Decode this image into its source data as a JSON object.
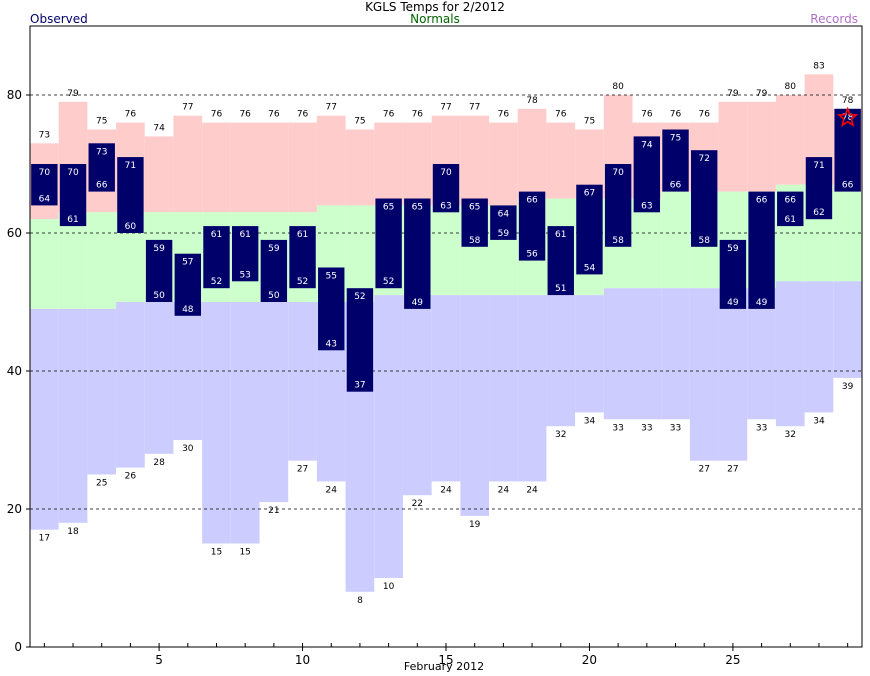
{
  "chart_data": {
    "type": "bar",
    "title": "KGLS Temps for 2/2012",
    "xlabel": "February 2012",
    "ylabel": "",
    "legend": {
      "observed": "Observed",
      "normals": "Normals",
      "records": "Records",
      "placement": "top"
    },
    "xlim": [
      0.5,
      29.5
    ],
    "ylim": [
      0,
      90
    ],
    "x_ticks": [
      5,
      10,
      15,
      20,
      25
    ],
    "y_ticks": [
      0,
      20,
      40,
      60,
      80
    ],
    "dashed_gridlines_y": [
      20,
      40,
      60,
      80
    ],
    "days": [
      1,
      2,
      3,
      4,
      5,
      6,
      7,
      8,
      9,
      10,
      11,
      12,
      13,
      14,
      15,
      16,
      17,
      18,
      19,
      20,
      21,
      22,
      23,
      24,
      25,
      26,
      27,
      28,
      29
    ],
    "record_high": [
      73,
      79,
      75,
      76,
      74,
      77,
      76,
      76,
      76,
      76,
      77,
      75,
      76,
      76,
      77,
      77,
      76,
      78,
      76,
      75,
      80,
      76,
      76,
      76,
      79,
      79,
      80,
      83,
      78
    ],
    "normal_high": [
      62,
      63,
      63,
      63,
      63,
      63,
      63,
      63,
      63,
      63,
      64,
      64,
      64,
      64,
      64,
      64,
      64,
      65,
      65,
      65,
      65,
      65,
      66,
      66,
      66,
      66,
      67,
      67,
      66
    ],
    "normal_low": [
      49,
      49,
      49,
      50,
      50,
      50,
      50,
      50,
      50,
      50,
      50,
      50,
      51,
      51,
      51,
      51,
      51,
      51,
      51,
      51,
      52,
      52,
      52,
      52,
      52,
      52,
      53,
      53,
      53
    ],
    "record_low": [
      17,
      18,
      25,
      26,
      28,
      30,
      15,
      15,
      21,
      27,
      24,
      8,
      10,
      22,
      24,
      19,
      24,
      24,
      32,
      34,
      33,
      33,
      33,
      27,
      27,
      33,
      32,
      34,
      39
    ],
    "observed_high": [
      70,
      70,
      73,
      71,
      59,
      57,
      61,
      61,
      59,
      61,
      55,
      52,
      65,
      65,
      70,
      65,
      64,
      66,
      61,
      67,
      70,
      74,
      75,
      72,
      59,
      66,
      66,
      71,
      78
    ],
    "observed_low": [
      64,
      61,
      66,
      60,
      50,
      48,
      52,
      53,
      50,
      52,
      43,
      37,
      52,
      49,
      63,
      58,
      59,
      56,
      51,
      54,
      58,
      63,
      66,
      58,
      49,
      49,
      61,
      62,
      66
    ],
    "record_marker": {
      "day": 29,
      "symbol": "star"
    }
  },
  "colors": {
    "record_band": "#ffcccc",
    "normal_band": "#ccffcc",
    "low_band": "#ccccff",
    "observed_bar": "#00006a",
    "observed_label": "#00006a",
    "normals_label": "#006400",
    "records_label": "#b070c8",
    "star": "#ff0000"
  }
}
